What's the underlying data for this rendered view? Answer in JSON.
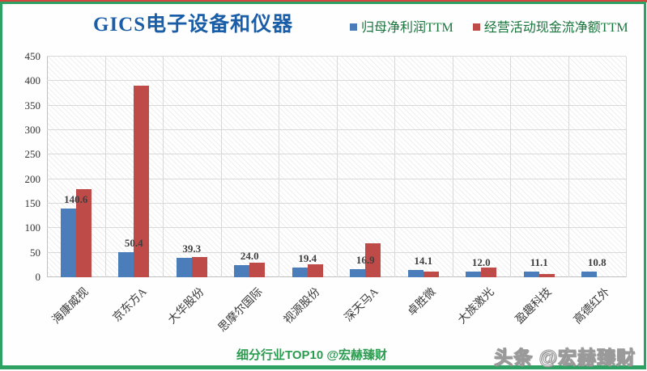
{
  "page": {
    "caption": "细分行业TOP10 @宏赫臻财",
    "watermark": "头条 @宏赫臻财"
  },
  "colors": {
    "series_blue": "#4C7DBB",
    "series_red": "#BE4B48",
    "title_blue": "#1B5EA8",
    "legend_green": "#17743B",
    "caption_green": "#2B9B50",
    "frame_green": "#2DA263",
    "top_line_red": "#D5473E",
    "gridline": "#D9D9D9"
  },
  "chart_data": {
    "type": "bar",
    "title": "GICS电子设备和仪器",
    "categories": [
      "海康威视",
      "京东方A",
      "大华股份",
      "思摩尔国际",
      "视源股份",
      "深天马A",
      "卓胜微",
      "大族激光",
      "盈趣科技",
      "高德红外"
    ],
    "series": [
      {
        "name": "归母净利润TTM",
        "color": "#4C7DBB",
        "values": [
          140.6,
          50.4,
          39.3,
          24.0,
          19.4,
          16.9,
          14.1,
          12.0,
          11.1,
          10.8
        ],
        "data_labels": [
          "140.6",
          "50.4",
          "39.3",
          "24.0",
          "19.4",
          "16.9",
          "14.1",
          "12.0",
          "11.1",
          "10.8"
        ]
      },
      {
        "name": "经营活动现金流净额TTM",
        "color": "#BE4B48",
        "values": [
          180,
          391,
          42,
          30,
          27,
          70,
          11,
          20,
          7,
          0
        ]
      }
    ],
    "ylabel": "",
    "xlabel": "",
    "ylim": [
      0,
      450
    ],
    "ytick_step": 50,
    "grid": true,
    "legend_position": "top-right",
    "plot_background": "diagonal-hatch"
  }
}
